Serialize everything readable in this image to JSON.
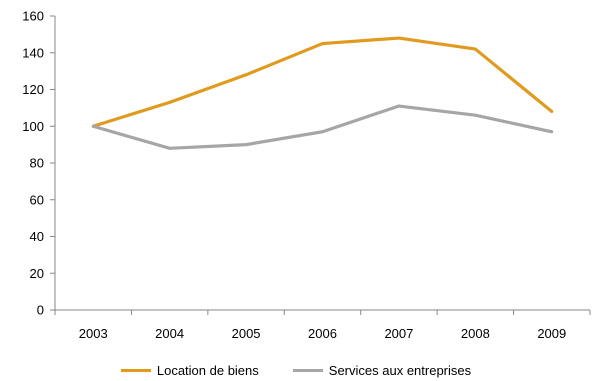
{
  "chart_data": {
    "type": "line",
    "categories": [
      "2003",
      "2004",
      "2005",
      "2006",
      "2007",
      "2008",
      "2009"
    ],
    "series": [
      {
        "name": "Location de biens",
        "color": "#E09B1F",
        "values": [
          100,
          113,
          128,
          145,
          148,
          142,
          108
        ]
      },
      {
        "name": "Services aux entreprises",
        "color": "#A6A6A6",
        "values": [
          100,
          88,
          90,
          97,
          111,
          106,
          97
        ]
      }
    ],
    "ylim": [
      0,
      160
    ],
    "yticks": [
      0,
      20,
      40,
      60,
      80,
      100,
      120,
      140,
      160
    ],
    "grid": false,
    "legend_position": "bottom",
    "title": "",
    "xlabel": "",
    "ylabel": ""
  }
}
